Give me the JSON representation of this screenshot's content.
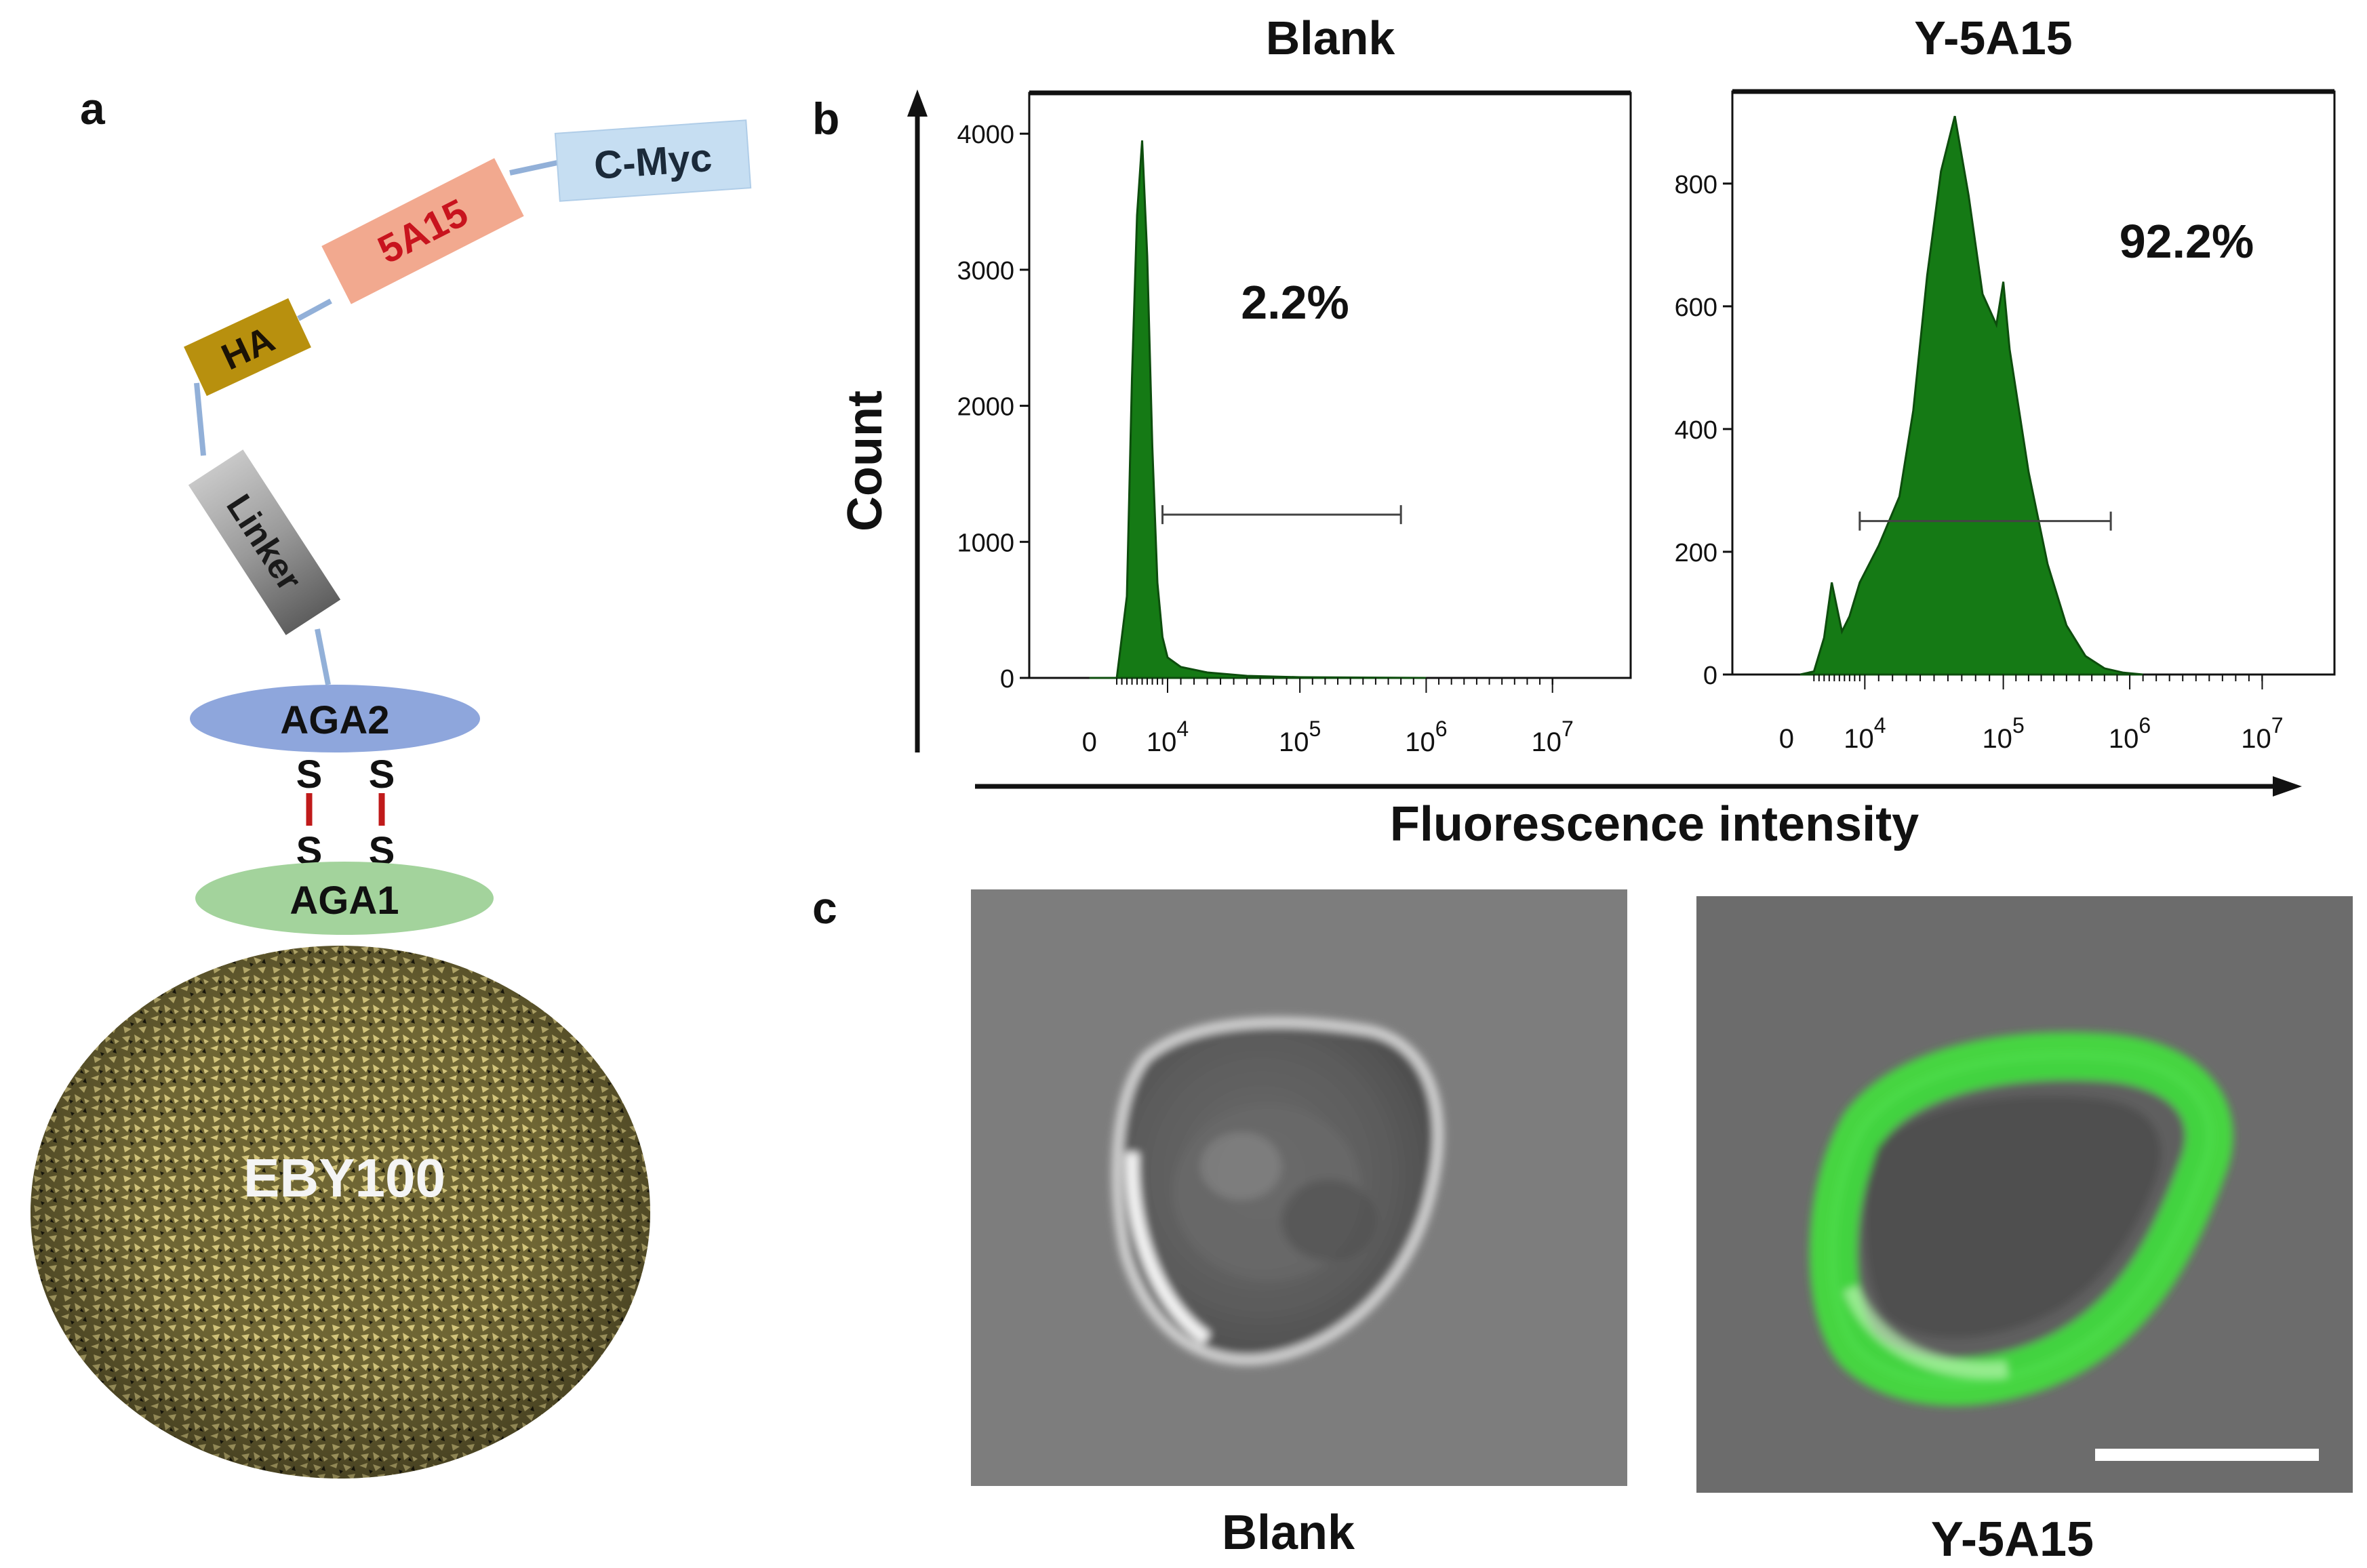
{
  "panel_labels": {
    "a": "a",
    "b": "b",
    "c": "c"
  },
  "panel_a": {
    "tags": {
      "cmyc": "C-Myc",
      "target": "5A15",
      "ha": "HA",
      "linker": "Linker",
      "aga2": "AGA2",
      "aga1": "AGA1",
      "cell": "EBY100"
    },
    "disulfide": {
      "s_top_left": "S",
      "s_top_right": "S",
      "s_bottom_left": "S",
      "s_bottom_right": "S"
    },
    "colors": {
      "cmyc": "#c6def2",
      "target_box": "#f2a98f",
      "target_text": "#c8141e",
      "ha": "#b8900e",
      "linker": "#8e8e8e",
      "aga2": "#8ea6dc",
      "aga1": "#a3d39c",
      "bond": "#c01a1a",
      "cell": "#6f6634"
    }
  },
  "panel_b": {
    "y_axis_label": "Count",
    "x_axis_label": "Fluorescence intensity",
    "fill_color": "#157a15"
  },
  "chart_data": [
    {
      "type": "area",
      "title": "Blank",
      "xlabel": "Fluorescence intensity",
      "ylabel": "Count",
      "x_scale": "biexponential",
      "x_tick_labels": [
        "0",
        "10^4",
        "10^5",
        "10^6",
        "10^7"
      ],
      "y_ticks": [
        0,
        1000,
        2000,
        3000,
        4000
      ],
      "ylim": [
        0,
        4300
      ],
      "gate_label": "2.2%",
      "gate_range_log10": [
        3.9,
        5.8
      ],
      "gate_count": 1200,
      "series": [
        {
          "name": "Blank",
          "x_log10": [
            2.0,
            2.6,
            3.0,
            3.2,
            3.3,
            3.4,
            3.5,
            3.6,
            3.7,
            3.8,
            3.9,
            4.0,
            4.1,
            4.3,
            4.6,
            5.0,
            6.0
          ],
          "y": [
            0,
            0,
            0,
            600,
            2200,
            3400,
            3950,
            3100,
            1700,
            700,
            300,
            150,
            80,
            40,
            15,
            5,
            0
          ]
        }
      ]
    },
    {
      "type": "area",
      "title": "Y-5A15",
      "xlabel": "Fluorescence intensity",
      "ylabel": "Count",
      "x_scale": "biexponential",
      "x_tick_labels": [
        "0",
        "10^4",
        "10^5",
        "10^6",
        "10^7"
      ],
      "y_ticks": [
        0,
        200,
        400,
        600,
        800
      ],
      "ylim": [
        0,
        950
      ],
      "gate_label": "92.2%",
      "gate_range_log10": [
        3.9,
        5.85
      ],
      "gate_count": 250,
      "series": [
        {
          "name": "Y-5A15",
          "x_log10": [
            2.5,
            3.0,
            3.2,
            3.35,
            3.45,
            3.55,
            3.7,
            3.9,
            4.1,
            4.25,
            4.35,
            4.45,
            4.55,
            4.65,
            4.75,
            4.85,
            4.95,
            5.0,
            5.05,
            5.2,
            5.35,
            5.5,
            5.65,
            5.8,
            5.95,
            6.1
          ],
          "y": [
            0,
            5,
            60,
            150,
            110,
            70,
            95,
            150,
            210,
            290,
            430,
            650,
            820,
            910,
            780,
            620,
            570,
            640,
            530,
            330,
            180,
            80,
            30,
            10,
            3,
            0
          ]
        }
      ]
    }
  ],
  "panel_c": {
    "left_caption": "Blank",
    "right_caption": "Y-5A15",
    "green_color": "#3ee83a"
  }
}
